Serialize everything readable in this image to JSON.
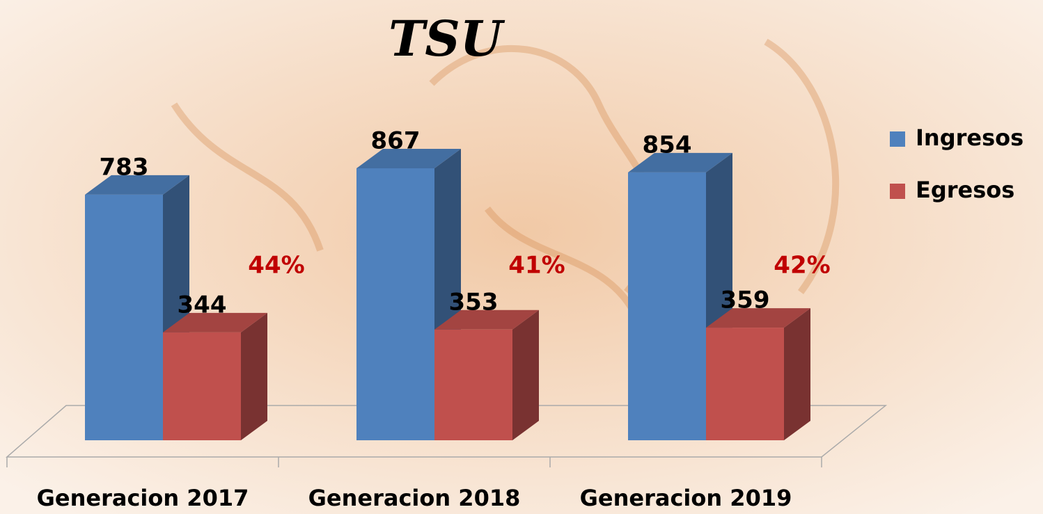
{
  "chart_data": {
    "type": "bar3d",
    "title": "TSU",
    "categories": [
      "Generacion 2017",
      "Generacion 2018",
      "Generacion 2019"
    ],
    "series": [
      {
        "name": "Ingresos",
        "color": "#4f81bd",
        "values": [
          783,
          867,
          854
        ]
      },
      {
        "name": "Egresos",
        "color": "#c0504d",
        "values": [
          344,
          353,
          359
        ]
      }
    ],
    "annotations": [
      "44%",
      "41%",
      "42%"
    ],
    "legend": "right"
  }
}
